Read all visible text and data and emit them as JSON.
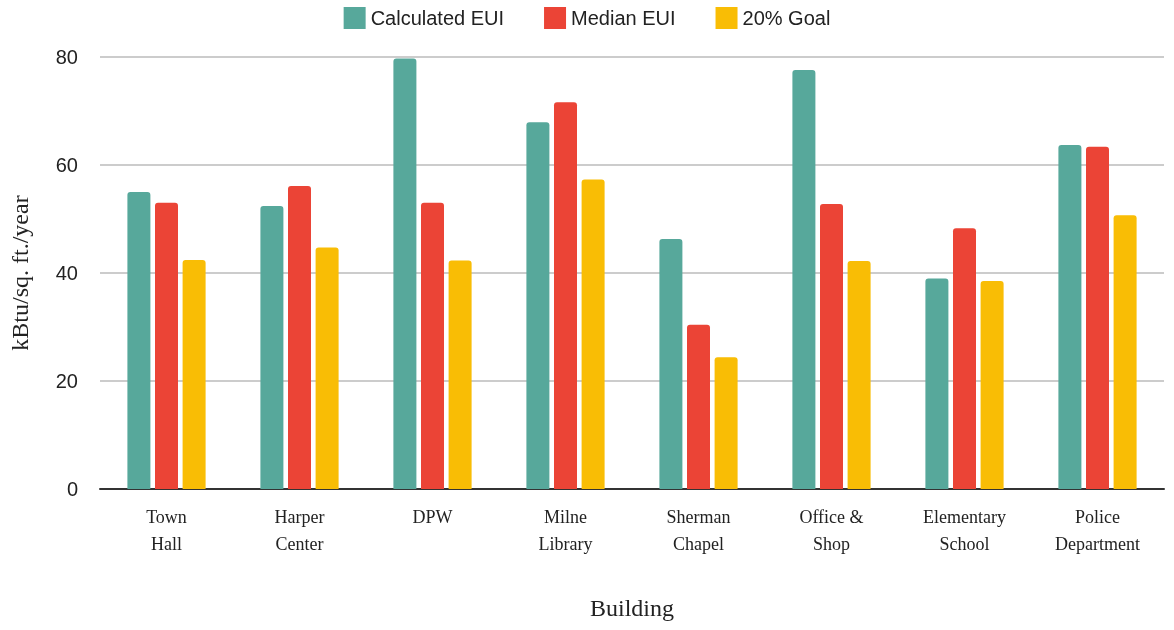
{
  "chart_data": {
    "type": "bar",
    "xlabel": "Building",
    "ylabel": "kBtu/sq. ft./year",
    "categories": [
      "Town Hall",
      "Harper Center",
      "DPW",
      "Milne Library",
      "Sherman Chapel",
      "Office & Shop",
      "Elementary School",
      "Police Department"
    ],
    "series": [
      {
        "name": "Calculated EUI",
        "color": "#57a89b",
        "values": [
          55,
          52.4,
          79.7,
          67.9,
          46.3,
          77.6,
          39,
          63.7
        ]
      },
      {
        "name": "Median EUI",
        "color": "#eb4436",
        "values": [
          53,
          56.1,
          53,
          71.6,
          30.4,
          52.8,
          48.3,
          63.4
        ]
      },
      {
        "name": "20% Goal",
        "color": "#f9bd05",
        "values": [
          42.4,
          44.7,
          42.3,
          57.3,
          24.4,
          42.2,
          38.5,
          50.7
        ]
      }
    ],
    "ylim": [
      0,
      80
    ],
    "yticks": [
      0,
      20,
      40,
      60,
      80
    ],
    "grid": "y",
    "legend": "top"
  }
}
